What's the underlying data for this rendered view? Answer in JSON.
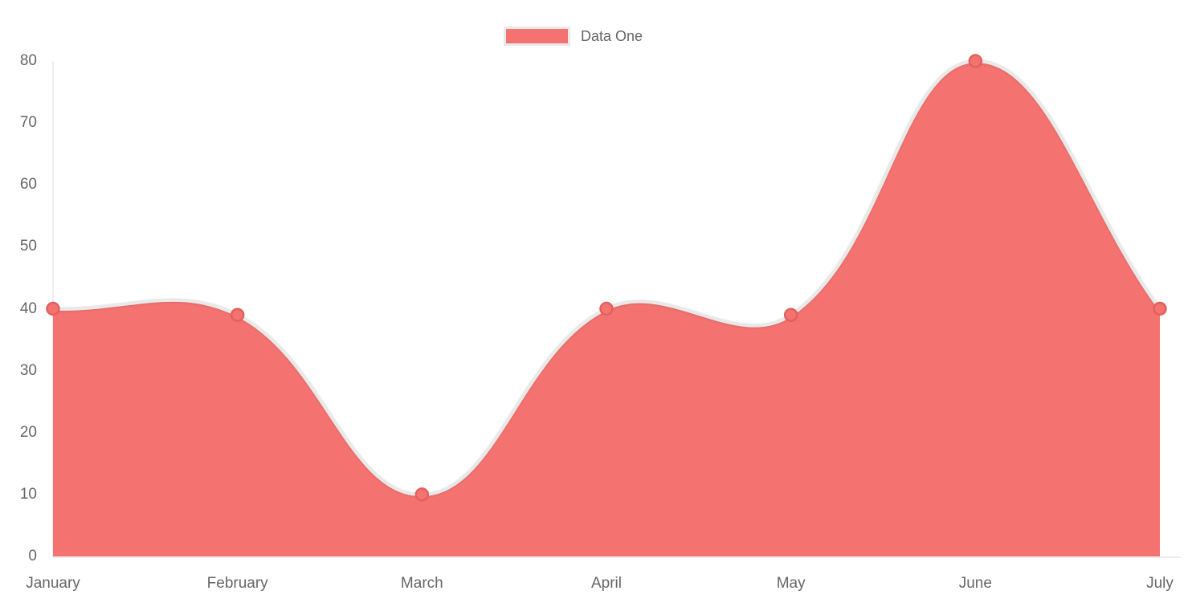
{
  "legend": {
    "position": "top"
  },
  "colors": {
    "series_fill": "#f4726f",
    "series_line": "#e9e9e9",
    "point_fill": "#f4726f",
    "point_border": "#e2605d",
    "axis_line": "#ededed",
    "label_text": "#666666",
    "background": "#ffffff"
  },
  "chart_data": {
    "type": "area",
    "title": "",
    "categories": [
      "January",
      "February",
      "March",
      "April",
      "May",
      "June",
      "July"
    ],
    "series": [
      {
        "name": "Data One",
        "values": [
          40,
          39,
          10,
          40,
          39,
          80,
          40
        ]
      }
    ],
    "xlabel": "",
    "ylabel": "",
    "ylim": [
      0,
      80
    ],
    "yticks": [
      0,
      10,
      20,
      30,
      40,
      50,
      60,
      70,
      80
    ],
    "grid": false,
    "legend_position": "top",
    "line_tension": 0.4
  }
}
